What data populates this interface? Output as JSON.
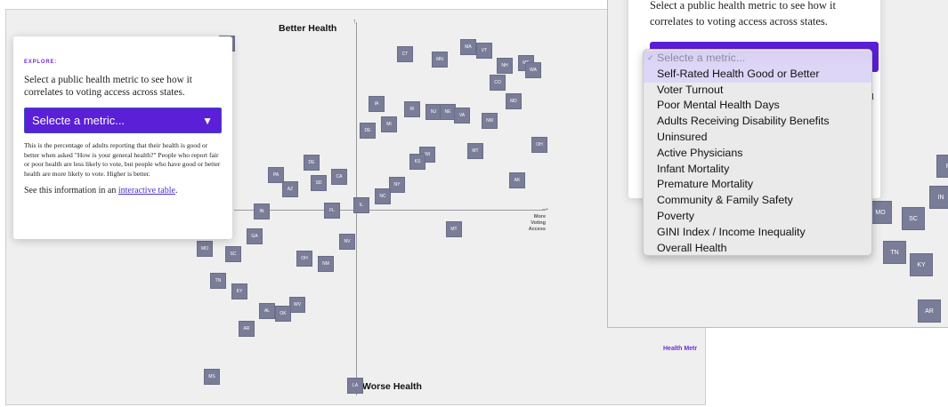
{
  "left": {
    "eyebrow": "EXPLORE:",
    "prompt": "Select a public health metric to see how it correlates to voting access across states.",
    "select_label": "Selecte a metric...",
    "select_icon": "caret-down-icon",
    "description": "This is the percentage of adults reporting that their health is good or better when asked \"How is your general health?\" People who report fair or poor health are less likely to vote, but people who have good or better health are more likely to vote. Higher is better.",
    "see_prefix": "See this information in an ",
    "see_link": "interactive table",
    "see_suffix": ".",
    "axis_top": "Better Health",
    "axis_bottom": "Worse Health",
    "axis_right_lines": [
      "More",
      "Voting",
      "Access"
    ],
    "states": [
      "CT",
      "MN",
      "MA",
      "VT",
      "NH",
      "ME",
      "WA",
      "CO",
      "MD",
      "IA",
      "RI",
      "NJ",
      "NE",
      "VA",
      "NM",
      "MI",
      "DE",
      "OH",
      "WI",
      "KS",
      "DE",
      "PA",
      "SD",
      "CA",
      "MT",
      "AK",
      "AZ",
      "NY",
      "NC",
      "IL",
      "FL",
      "IN",
      "MT",
      "GA",
      "MO",
      "SC",
      "OH",
      "NM",
      "NV",
      "TN",
      "KY",
      "WV",
      "AL",
      "OK",
      "AR",
      "MS",
      "LA",
      "NH"
    ]
  },
  "right": {
    "prompt": "Select a public health metric to see how it correlates to voting access across states.",
    "partial_text": "al",
    "dropdown": {
      "placeholder": "Selecte a metric...",
      "options": [
        "Self-Rated Health Good or Better",
        "Voter Turnout",
        "Poor Mental Health Days",
        "Adults Receiving Disability Benefits",
        "Uninsured",
        "Active Physicians",
        "Infant Mortality",
        "Premature Mortality",
        "Community & Family Safety",
        "Poverty",
        "GINI Index / Income Inequality",
        "Overall Health"
      ]
    },
    "states": [
      "F",
      "IN",
      "MO",
      "SC",
      "TN",
      "KY",
      "AR"
    ],
    "health_tag": "Health Metr"
  }
}
